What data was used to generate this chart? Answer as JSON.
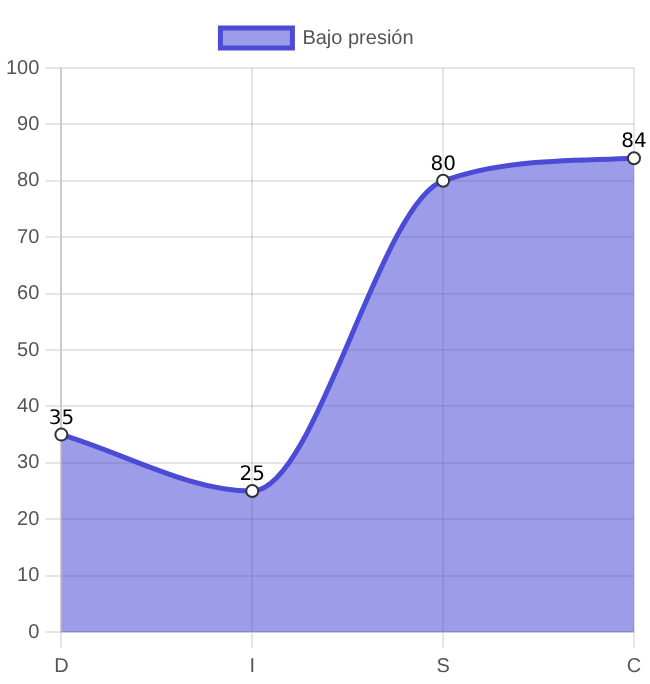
{
  "chart_data": {
    "type": "area",
    "categories": [
      "D",
      "I",
      "S",
      "C"
    ],
    "series": [
      {
        "name": "Bajo presión",
        "color": "#4b4bd6",
        "values": [
          35,
          25,
          80,
          84
        ]
      }
    ],
    "ylim": [
      0,
      100
    ],
    "yticks": [
      0,
      10,
      20,
      30,
      40,
      50,
      60,
      70,
      80,
      90,
      100
    ],
    "grid": true,
    "legend": "top",
    "marker": "circle",
    "data_labels": true
  }
}
